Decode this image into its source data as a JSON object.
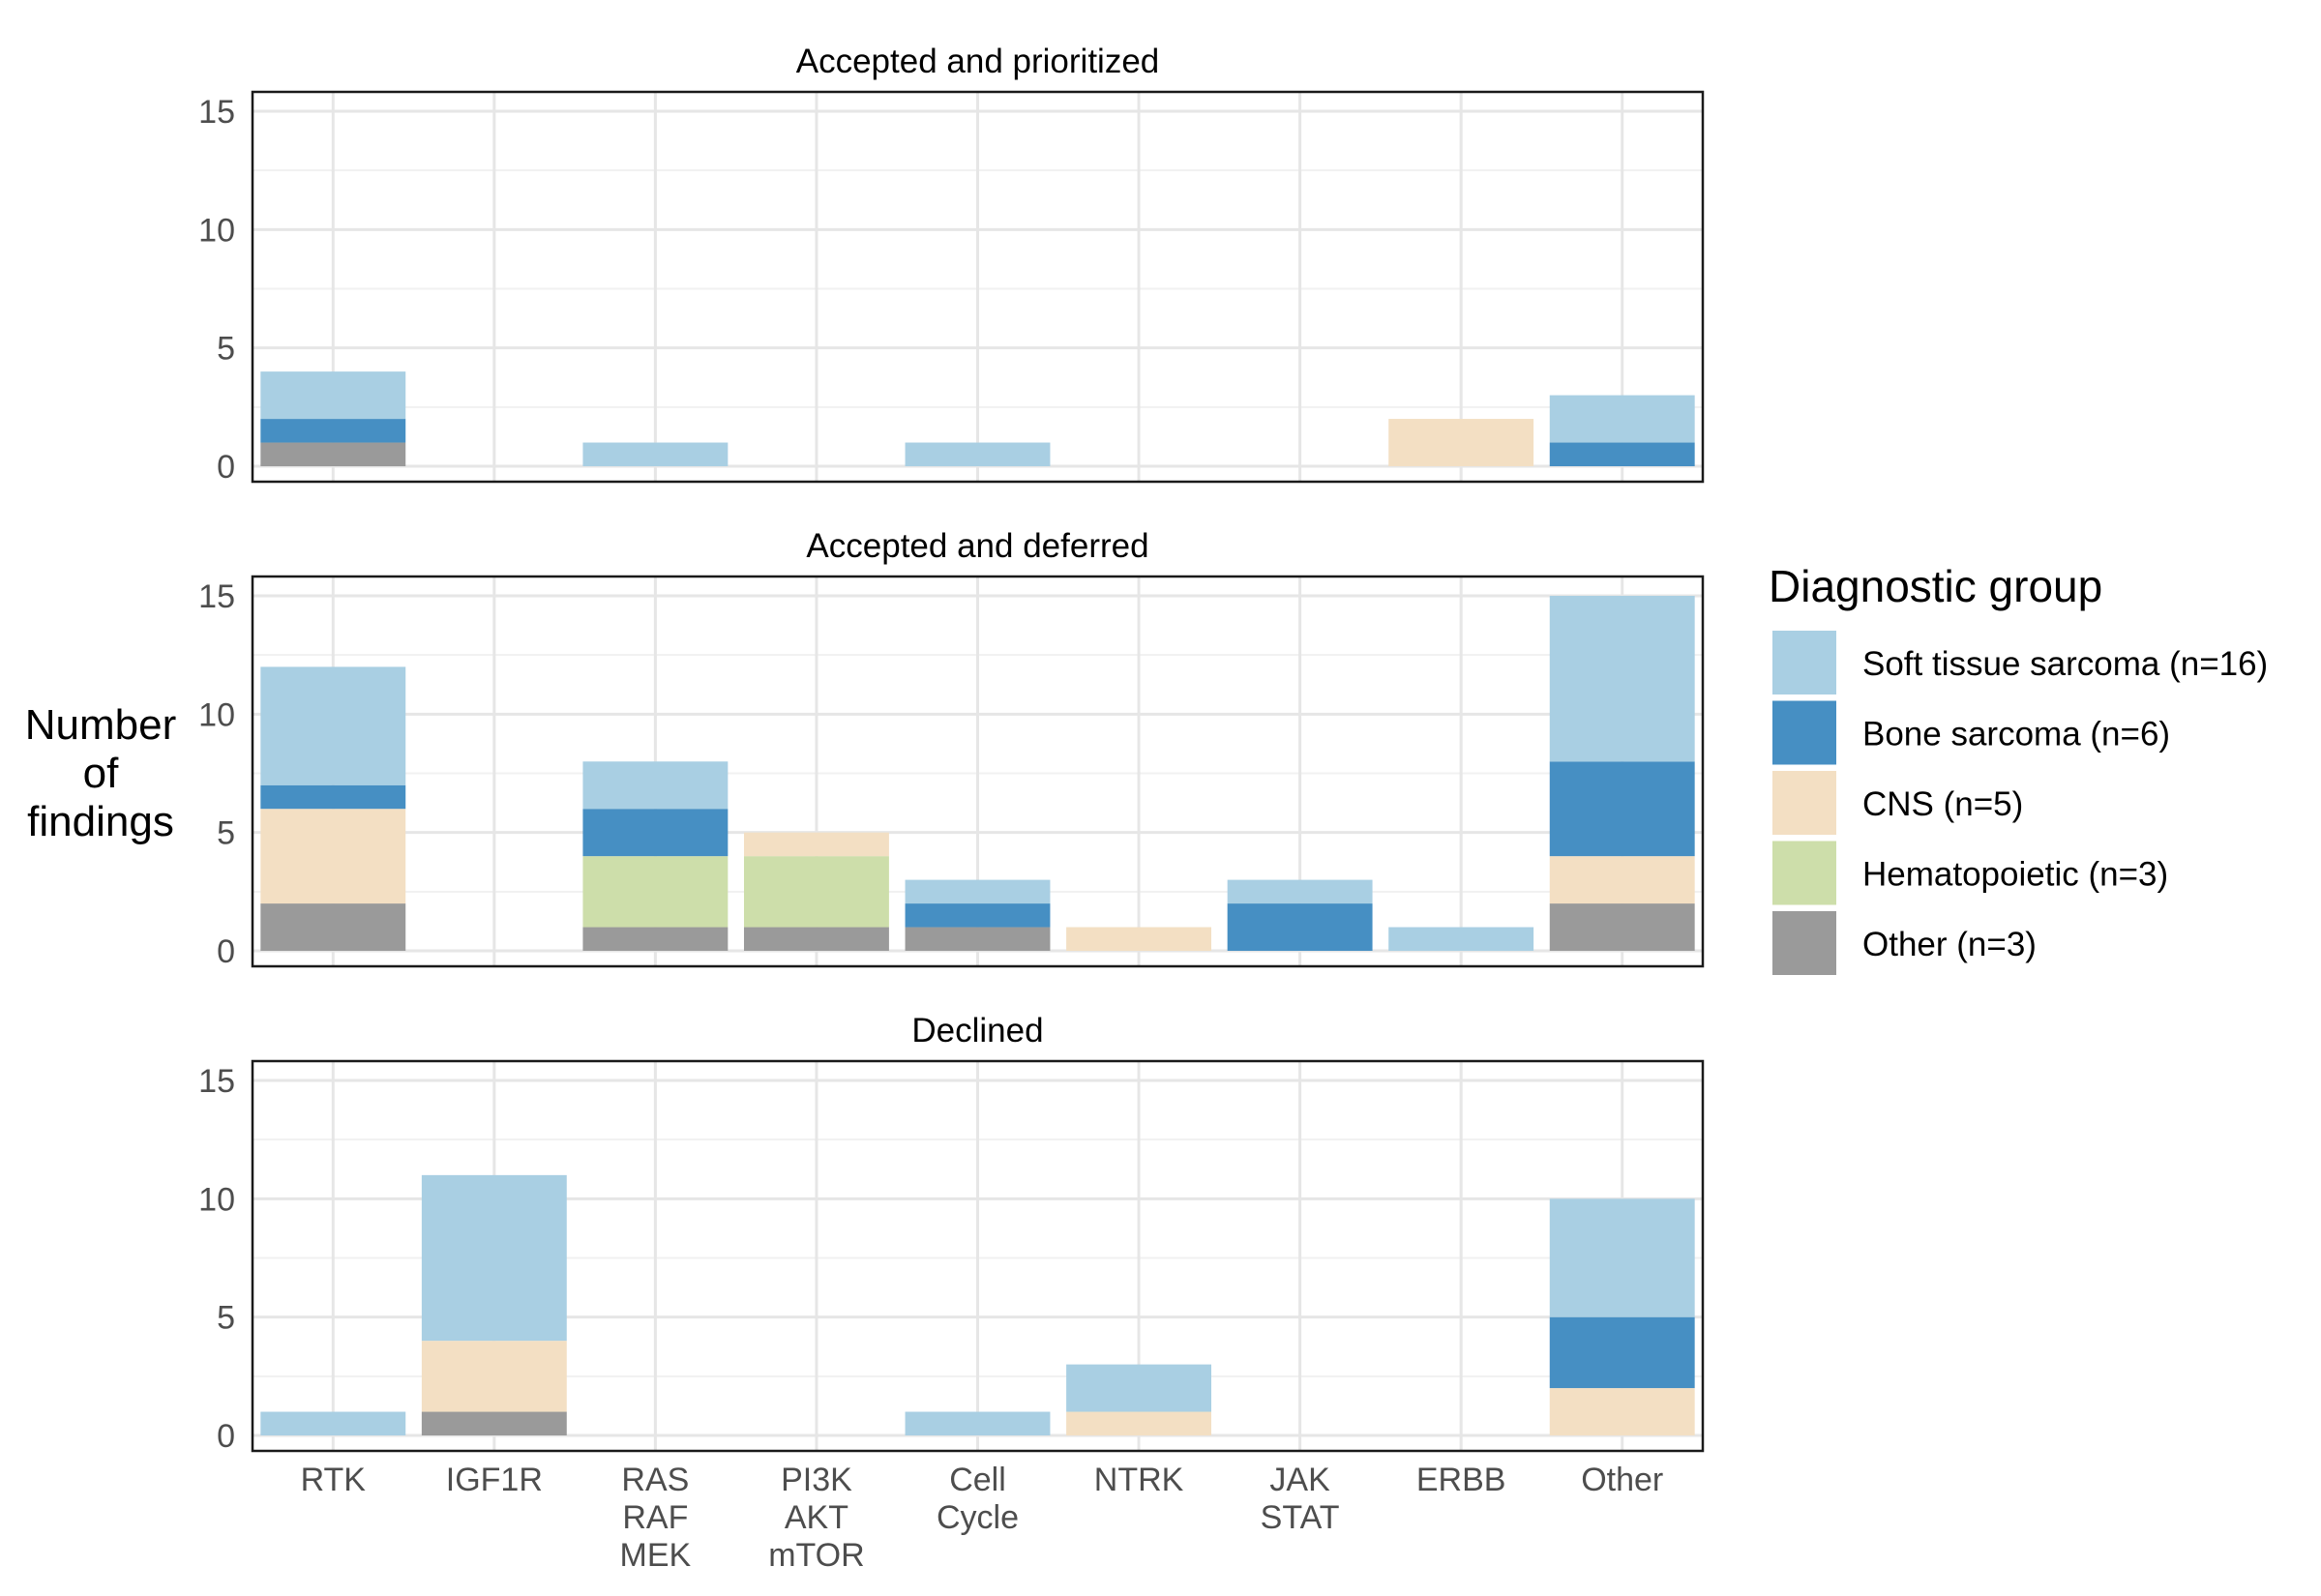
{
  "colors": {
    "Soft tissue sarcoma": "#a9cfe3",
    "Bone sarcoma": "#468fc3",
    "CNS": "#f3dfc3",
    "Hematopoietic": "#cddeaa",
    "Other": "#9a9a9a"
  },
  "chart_data": {
    "type": "bar",
    "stacked": true,
    "categories": [
      "RTK",
      "IGF1R",
      "RAS\nRAF\nMEK",
      "PI3K\nAKT\nmTOR",
      "Cell\nCycle",
      "NTRK",
      "JAK\nSTAT",
      "ERBB",
      "Other"
    ],
    "ylabel": "Number\nof\nfindings",
    "ylim": [
      0,
      15
    ],
    "yticks": [
      0,
      5,
      10,
      15
    ],
    "grid": true,
    "legend": {
      "title": "Diagnostic group",
      "position": "right",
      "entries": [
        "Soft tissue sarcoma (n=16)",
        "Bone sarcoma (n=6)",
        "CNS (n=5)",
        "Hematopoietic (n=3)",
        "Other (n=3)"
      ]
    },
    "stack_order": [
      "Other",
      "Hematopoietic",
      "CNS",
      "Bone sarcoma",
      "Soft tissue sarcoma"
    ],
    "panels": [
      {
        "title": "Accepted and prioritized",
        "series": [
          {
            "name": "Soft tissue sarcoma",
            "values": [
              2,
              0,
              1,
              0,
              1,
              0,
              0,
              0,
              2
            ]
          },
          {
            "name": "Bone sarcoma",
            "values": [
              1,
              0,
              0,
              0,
              0,
              0,
              0,
              0,
              1
            ]
          },
          {
            "name": "CNS",
            "values": [
              0,
              0,
              0,
              0,
              0,
              0,
              0,
              2,
              0
            ]
          },
          {
            "name": "Hematopoietic",
            "values": [
              0,
              0,
              0,
              0,
              0,
              0,
              0,
              0,
              0
            ]
          },
          {
            "name": "Other",
            "values": [
              1,
              0,
              0,
              0,
              0,
              0,
              0,
              0,
              0
            ]
          }
        ]
      },
      {
        "title": "Accepted and deferred",
        "series": [
          {
            "name": "Soft tissue sarcoma",
            "values": [
              5,
              0,
              2,
              0,
              1,
              0,
              1,
              1,
              7
            ]
          },
          {
            "name": "Bone sarcoma",
            "values": [
              1,
              0,
              2,
              0,
              1,
              0,
              2,
              0,
              4
            ]
          },
          {
            "name": "CNS",
            "values": [
              4,
              0,
              0,
              1,
              0,
              1,
              0,
              0,
              2
            ]
          },
          {
            "name": "Hematopoietic",
            "values": [
              0,
              0,
              3,
              3,
              0,
              0,
              0,
              0,
              0
            ]
          },
          {
            "name": "Other",
            "values": [
              2,
              0,
              1,
              1,
              1,
              0,
              0,
              0,
              2
            ]
          }
        ]
      },
      {
        "title": "Declined",
        "series": [
          {
            "name": "Soft tissue sarcoma",
            "values": [
              1,
              7,
              0,
              0,
              1,
              2,
              0,
              0,
              5
            ]
          },
          {
            "name": "Bone sarcoma",
            "values": [
              0,
              0,
              0,
              0,
              0,
              0,
              0,
              0,
              3
            ]
          },
          {
            "name": "CNS",
            "values": [
              0,
              3,
              0,
              0,
              0,
              1,
              0,
              0,
              2
            ]
          },
          {
            "name": "Hematopoietic",
            "values": [
              0,
              0,
              0,
              0,
              0,
              0,
              0,
              0,
              0
            ]
          },
          {
            "name": "Other",
            "values": [
              0,
              1,
              0,
              0,
              0,
              0,
              0,
              0,
              0
            ]
          }
        ]
      }
    ]
  }
}
